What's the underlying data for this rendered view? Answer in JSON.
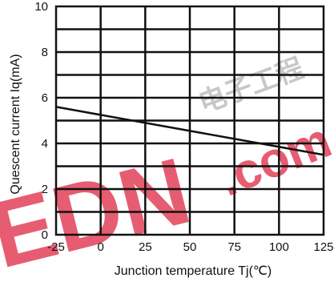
{
  "chart_data": {
    "type": "line",
    "xlabel": "Junction temperature Tj(℃)",
    "ylabel": "Quescent current Iq(mA)",
    "xlim": [
      -25,
      125
    ],
    "ylim": [
      0,
      10
    ],
    "x_ticks": [
      "-25",
      "0",
      "25",
      "50",
      "75",
      "100",
      "125"
    ],
    "y_ticks": [
      "0",
      "2",
      "4",
      "6",
      "8",
      "10"
    ],
    "grid": true,
    "series": [
      {
        "x": [
          -25,
          125
        ],
        "y": [
          5.6,
          3.5
        ],
        "color": "#111111"
      }
    ]
  },
  "watermark": {
    "brand": "EDN",
    "suffix": ".com",
    "chinese": "电子工程",
    "color": "#e0304a"
  }
}
